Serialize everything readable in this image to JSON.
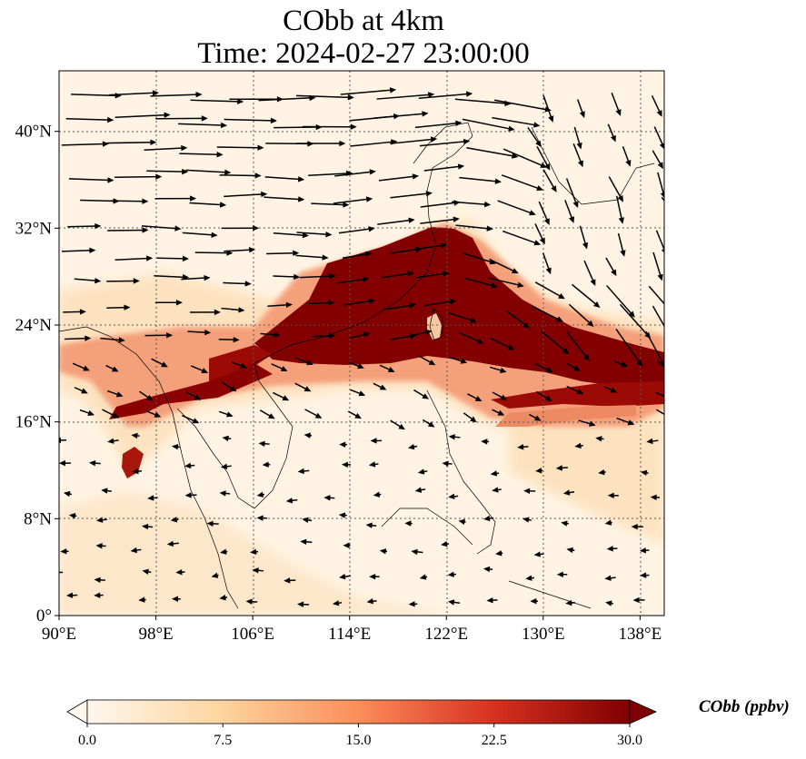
{
  "title": {
    "line1": "CObb at 4km",
    "line2": "Time: 2024-02-27 23:00:00"
  },
  "map": {
    "projection": "PlateCarree",
    "lon_range": [
      90,
      140
    ],
    "lat_range": [
      0,
      45
    ],
    "gridlines": true,
    "coastlines": true,
    "lon_ticks": [
      {
        "value": 90,
        "label": "90°E"
      },
      {
        "value": 98,
        "label": "98°E"
      },
      {
        "value": 106,
        "label": "106°E"
      },
      {
        "value": 114,
        "label": "114°E"
      },
      {
        "value": 122,
        "label": "122°E"
      },
      {
        "value": 130,
        "label": "130°E"
      },
      {
        "value": 138,
        "label": "138°E"
      }
    ],
    "lat_ticks": [
      {
        "value": 0,
        "label": "0°"
      },
      {
        "value": 8,
        "label": "8°N"
      },
      {
        "value": 16,
        "label": "16°N"
      },
      {
        "value": 24,
        "label": "24°N"
      },
      {
        "value": 32,
        "label": "32°N"
      },
      {
        "value": 40,
        "label": "40°N"
      }
    ],
    "field_colors": {
      "background": "#fff4e4",
      "light": "#fde2c0",
      "medium": "#f4a07a",
      "strong": "#d93a26",
      "max": "#820000"
    },
    "wind_vectors": "black arrows; westerlies north of ~20°N strengthening toward the NE, weak easterlies south of ~16°N"
  },
  "colorbar": {
    "label": "CObb (ppbv)",
    "min": 0.0,
    "max": 30.0,
    "extend": "both",
    "colormap": "OrRd",
    "ticks": [
      {
        "value": 0.0,
        "label": "0.0"
      },
      {
        "value": 7.5,
        "label": "7.5"
      },
      {
        "value": 15.0,
        "label": "15.0"
      },
      {
        "value": 22.5,
        "label": "22.5"
      },
      {
        "value": 30.0,
        "label": "30.0"
      }
    ]
  }
}
